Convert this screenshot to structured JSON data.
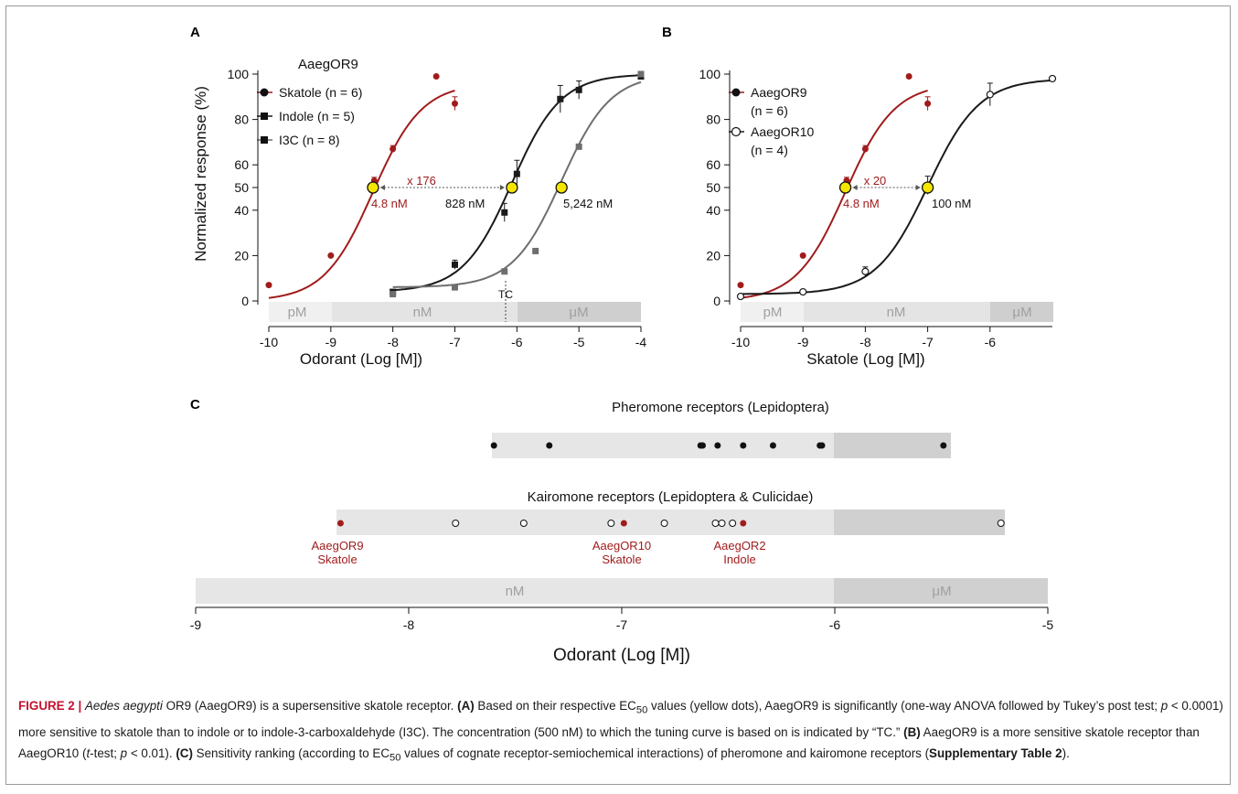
{
  "panels": {
    "A": {
      "letter": "A",
      "legend_title": "AaegOR9",
      "legend": [
        "Skatole (n = 6)",
        "Indole (n = 5)",
        "I3C (n = 8)"
      ],
      "ylabel": "Normalized response (%)",
      "xlabel": "Odorant (Log [M])",
      "fold_label": "x 176",
      "ec50_labels": [
        "4.8 nM",
        "828 nM",
        "5,242 nM"
      ],
      "tc_label": "TC",
      "band_labels": [
        "pM",
        "nM",
        "μM"
      ]
    },
    "B": {
      "letter": "B",
      "legend": [
        "AaegOR9",
        "(n = 6)",
        "AaegOR10",
        "(n = 4)"
      ],
      "xlabel": "Skatole (Log [M])",
      "fold_label": "x 20",
      "ec50_labels": [
        "4.8 nM",
        "100 nM"
      ],
      "band_labels": [
        "pM",
        "nM",
        "μM"
      ]
    },
    "C": {
      "letter": "C",
      "pheromone_title": "Pheromone receptors (Lepidoptera)",
      "kairomone_title": "Kairomone receptors (Lepidoptera & Culicidae)",
      "receptor_labels": [
        {
          "line1": "AaegOR9",
          "line2": "Skatole"
        },
        {
          "line1": "AaegOR10",
          "line2": "Skatole"
        },
        {
          "line1": "AaegOR2",
          "line2": "Indole"
        }
      ],
      "xlabel": "Odorant (Log [M])",
      "band_labels": [
        "nM",
        "μM"
      ]
    }
  },
  "colors": {
    "skatole": "#a01c1c",
    "indole": "#1a1a1a",
    "i3c": "#6e6e6e",
    "ec50_marker": "#f5e600",
    "band_light": "#e8e8e8",
    "band_dark": "#d0d0d0",
    "caption_lead": "#c4122f"
  },
  "chart_data": [
    {
      "type": "scatter",
      "panel": "A",
      "xlabel": "Odorant (Log [M])",
      "ylabel": "Normalized response (%)",
      "xlim": [
        -10,
        -4
      ],
      "ylim": [
        0,
        100
      ],
      "xticks": [
        -10,
        -9,
        -8,
        -7,
        -6,
        -5,
        -4
      ],
      "yticks": [
        0,
        20,
        40,
        50,
        60,
        80,
        100
      ],
      "series": [
        {
          "name": "Skatole (n = 6)",
          "color": "#a01c1c",
          "marker": "circle",
          "filled": true,
          "ec50_log": -8.32,
          "top": 96,
          "bottom": 0,
          "hill": 1.1,
          "x": [
            -10,
            -9,
            -8.3,
            -8,
            -7.3,
            -7
          ],
          "y": [
            7,
            20,
            53,
            67,
            99,
            87
          ],
          "err": [
            0,
            0,
            1.5,
            1.5,
            0,
            3
          ]
        },
        {
          "name": "Indole (n = 5)",
          "color": "#1a1a1a",
          "marker": "square",
          "filled": true,
          "ec50_log": -6.08,
          "top": 100,
          "bottom": 4,
          "hill": 1.1,
          "x": [
            -8,
            -7,
            -6.2,
            -6,
            -5.3,
            -5,
            -4
          ],
          "y": [
            4,
            16,
            39,
            56,
            89,
            93,
            99
          ],
          "err": [
            0,
            2,
            4,
            6,
            6,
            4,
            0
          ]
        },
        {
          "name": "I3C (n = 8)",
          "color": "#6e6e6e",
          "marker": "square",
          "filled": true,
          "ec50_log": -5.28,
          "top": 100,
          "bottom": 6,
          "hill": 1.1,
          "x": [
            -8,
            -7,
            -6.2,
            -5.7,
            -5,
            -4
          ],
          "y": [
            3,
            6,
            13,
            22,
            68,
            100
          ],
          "err": [
            0,
            0,
            0,
            0,
            0,
            0
          ]
        }
      ],
      "ec50_points": [
        -8.32,
        -6.08,
        -5.28
      ],
      "tc_log": -6.3
    },
    {
      "type": "scatter",
      "panel": "B",
      "xlabel": "Skatole (Log [M])",
      "xlim": [
        -10,
        -5
      ],
      "ylim": [
        0,
        100
      ],
      "xticks": [
        -10,
        -9,
        -8,
        -7,
        -6
      ],
      "yticks": [
        0,
        20,
        40,
        50,
        60,
        80,
        100
      ],
      "series": [
        {
          "name": "AaegOR9",
          "color": "#a01c1c",
          "marker": "circle",
          "filled": true,
          "ec50_log": -8.32,
          "top": 96,
          "bottom": 0,
          "hill": 1.1,
          "x": [
            -10,
            -9,
            -8.3,
            -8,
            -7.3,
            -7
          ],
          "y": [
            7,
            20,
            53,
            67,
            99,
            87
          ],
          "err": [
            0,
            0,
            1.5,
            1.5,
            0,
            3
          ]
        },
        {
          "name": "AaegOR10",
          "color": "#1a1a1a",
          "marker": "circle",
          "filled": false,
          "ec50_log": -7.0,
          "top": 98,
          "bottom": 3,
          "hill": 1.05,
          "x": [
            -10,
            -9,
            -8,
            -7,
            -6,
            -5
          ],
          "y": [
            2,
            4,
            13,
            51,
            91,
            98
          ],
          "err": [
            0,
            0,
            2,
            4,
            5,
            0
          ]
        }
      ],
      "ec50_points": [
        -8.32,
        -7.0
      ]
    },
    {
      "type": "scatter",
      "panel": "C",
      "xlabel": "Odorant (Log [M])",
      "xlim": [
        -9,
        -5
      ],
      "xticks": [
        -9,
        -8,
        -7,
        -6,
        -5
      ],
      "series": [
        {
          "name": "Pheromone receptors (Lepidoptera)",
          "filled": true,
          "color": "#111111",
          "x": [
            -7.6,
            -7.34,
            -6.63,
            -6.62,
            -6.55,
            -6.43,
            -6.29,
            -6.07,
            -6.06,
            -5.49
          ]
        },
        {
          "name": "Kairomone receptors (Lepidoptera & Culicidae)",
          "filled": false,
          "color": "#1a1a1a",
          "x": [
            -7.78,
            -7.46,
            -7.05,
            -6.8,
            -6.56,
            -6.53,
            -6.48,
            -5.22
          ]
        },
        {
          "name": "AaegOR9 / AaegOR10 / AaegOR2",
          "filled": true,
          "color": "#a01c1c",
          "x": [
            -8.32,
            -6.99,
            -6.43
          ]
        }
      ]
    }
  ],
  "caption": {
    "lead": "FIGURE 2 |",
    "species": "Aedes aegypti",
    "p1": " OR9 (AaegOR9) is a supersensitive skatole receptor. ",
    "a_tag": "(A)",
    "p2": " Based on their respective EC",
    "sub50": "50",
    "p3": " values (yellow dots), AaegOR9 is significantly (one-way ANOVA followed by Tukey’s post test; ",
    "p_sym": "p",
    "p4": " < 0.0001) more sensitive to skatole than to indole or to indole-3-carboxaldehyde (I3C). The concentration (500 nM) to which the tuning curve is based on is indicated by “TC.” ",
    "b_tag": "(B)",
    "p5": " AaegOR9 is a more sensitive skatole receptor than AaegOR10 (",
    "t_sym": "t",
    "p6": "-test; ",
    "p7": " < 0.01). ",
    "c_tag": "(C)",
    "p8": " Sensitivity ranking (according to EC",
    "p9": " values of cognate receptor-semiochemical interactions) of pheromone and kairomone receptors (",
    "supp": "Supplementary Table 2",
    "p10": ")."
  }
}
